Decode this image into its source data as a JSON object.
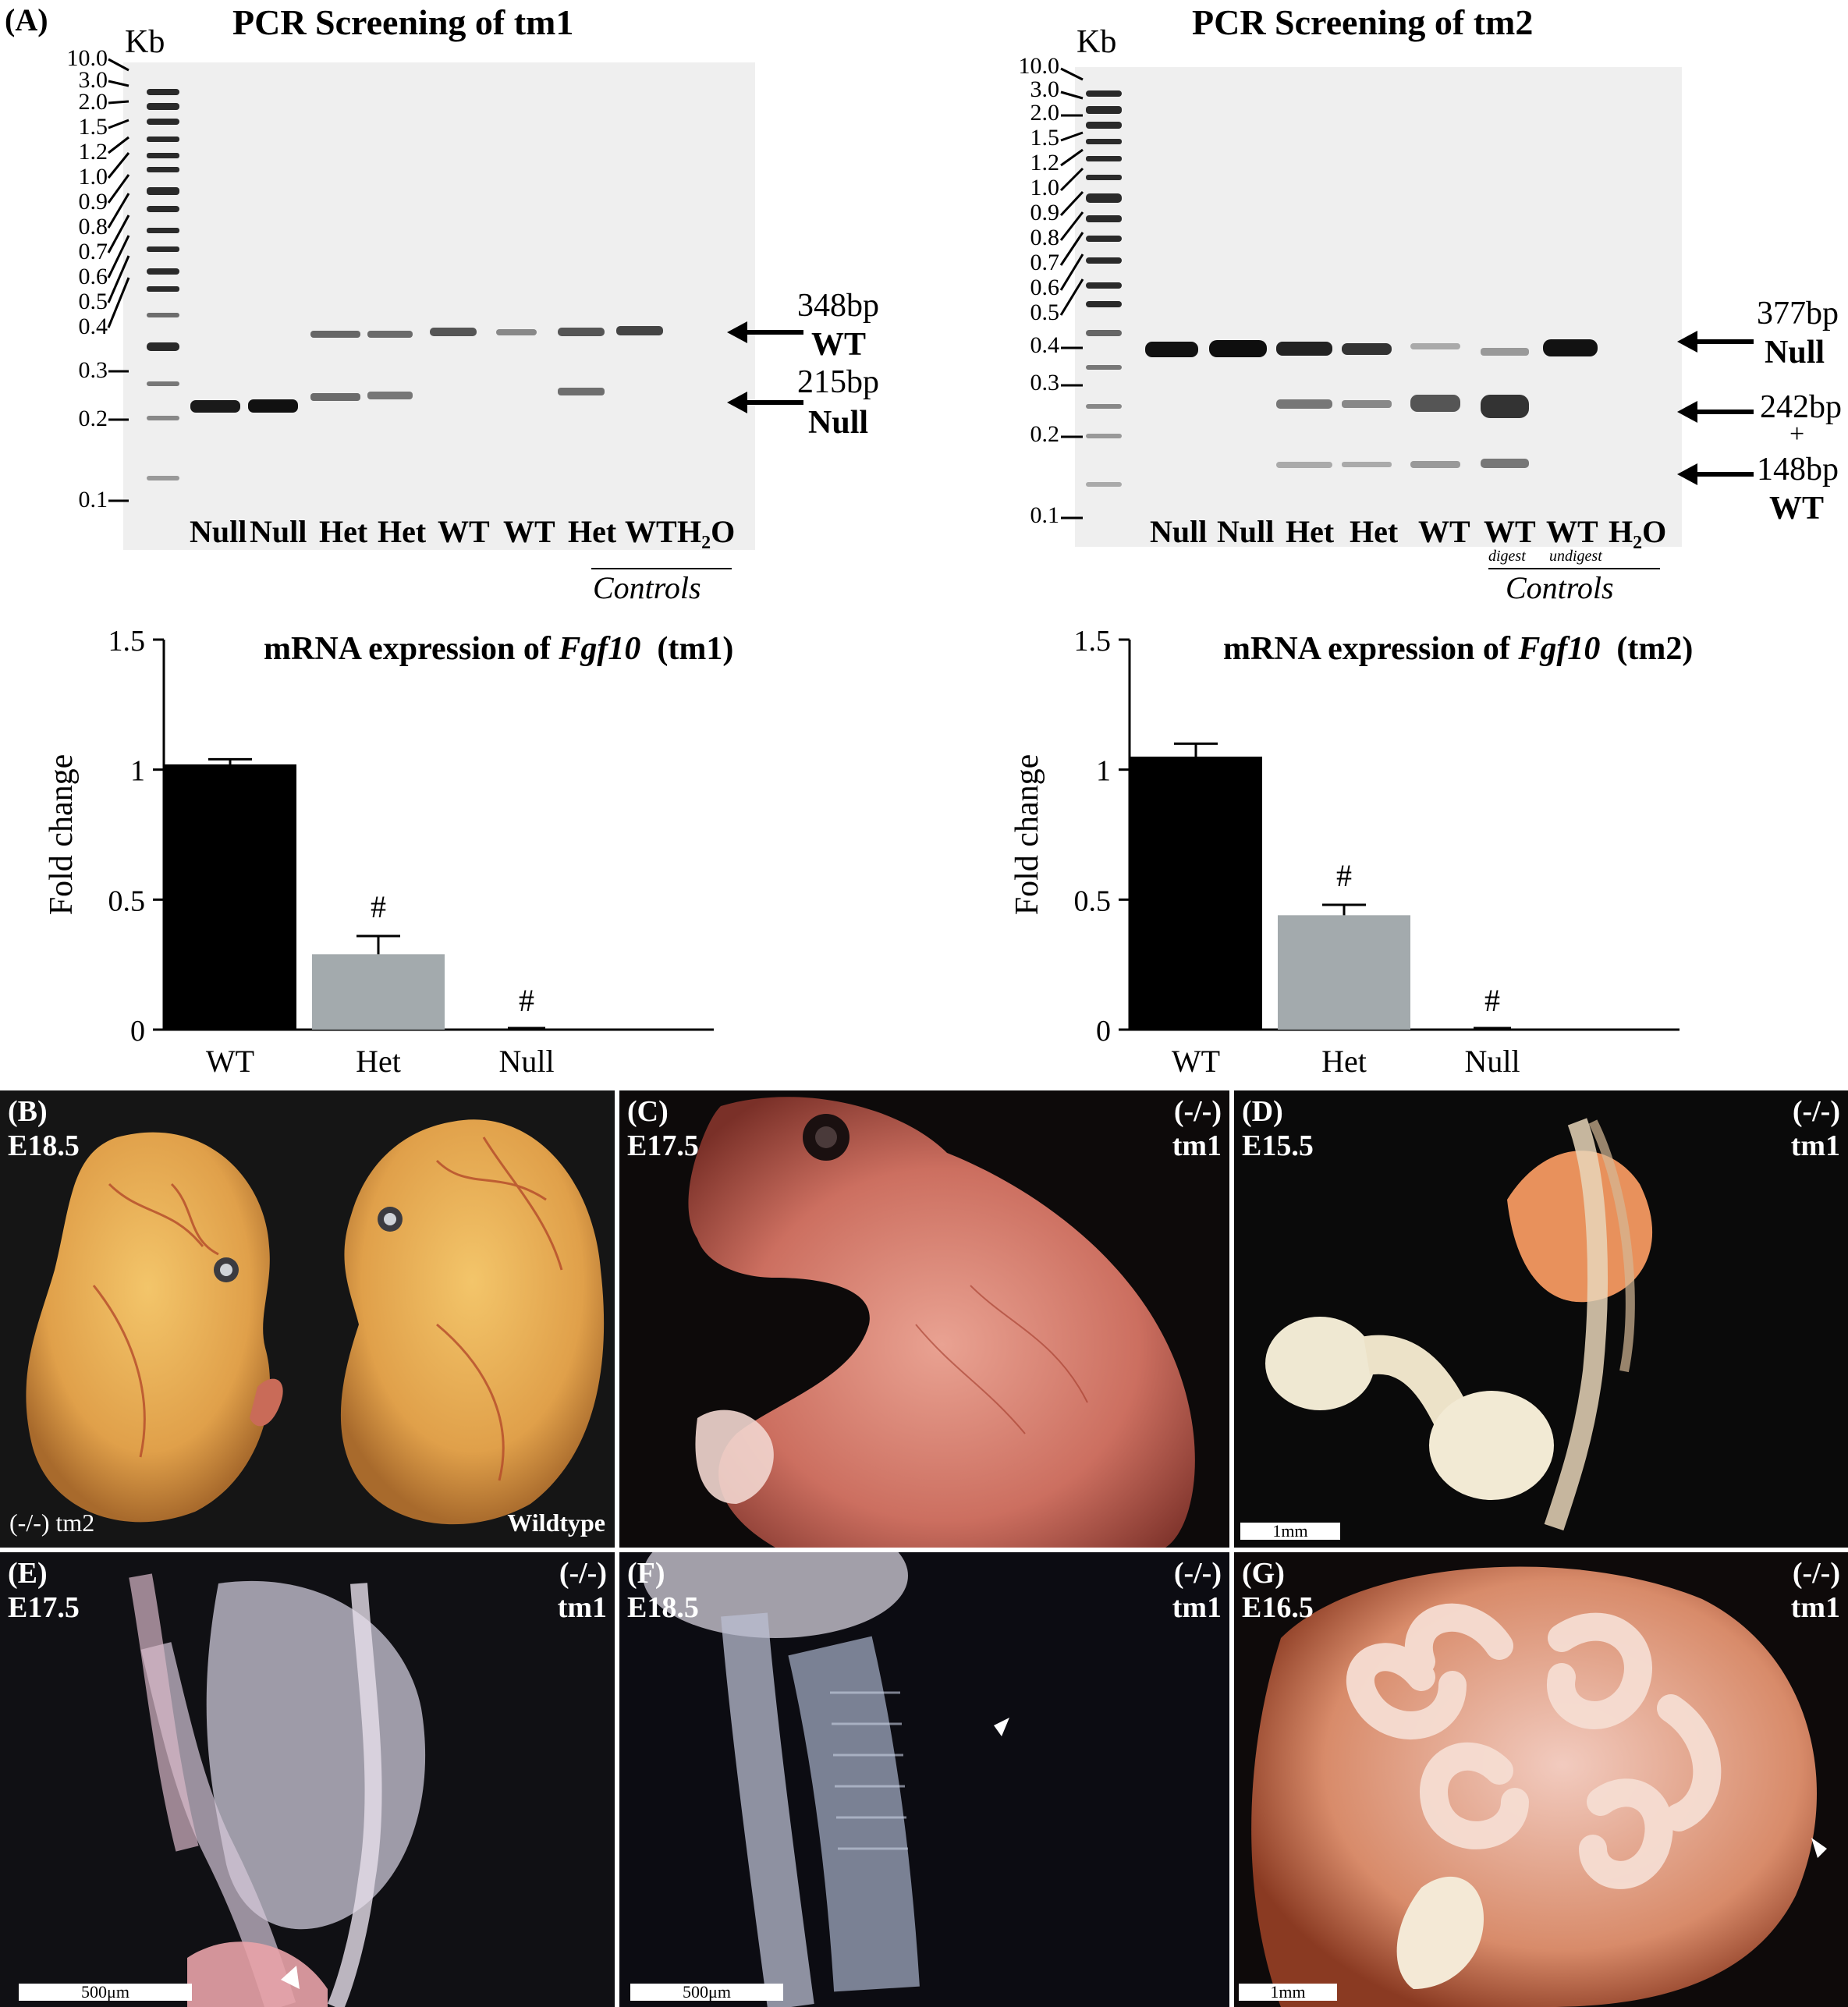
{
  "panel_a": {
    "label": "(A)",
    "kb": "Kb",
    "ladder": [
      "10.0",
      "3.0",
      "2.0",
      "1.5",
      "1.2",
      "1.0",
      "0.9",
      "0.8",
      "0.7",
      "0.6",
      "0.5",
      "0.4",
      "0.3",
      "0.2",
      "0.1"
    ],
    "tm1": {
      "title": "PCR Screening of tm1",
      "lanes": [
        "Null",
        "Null",
        "Het",
        "Het",
        "WT",
        "WT",
        "Het",
        "WT",
        "H₂O"
      ],
      "controls": "Controls",
      "ann_wt_bp": "348bp",
      "ann_wt": "WT",
      "ann_null_bp": "215bp",
      "ann_null": "Null"
    },
    "tm2": {
      "title": "PCR Screening of tm2",
      "lanes": [
        "Null",
        "Null",
        "Het",
        "Het",
        "WT",
        "WT",
        "WT",
        "H₂O"
      ],
      "sub_digest": "digest",
      "sub_undigest": "undigest",
      "controls": "Controls",
      "ann_null_bp": "377bp",
      "ann_null": "Null",
      "ann_242": "242bp",
      "ann_plus": "+",
      "ann_148": "148bp",
      "ann_wt": "WT"
    }
  },
  "chart_data": [
    {
      "type": "bar",
      "title_prefix": "mRNA expression of ",
      "title_gene": "Fgf10",
      "title_suffix": "(tm1)",
      "ylabel": "Fold change",
      "categories": [
        "WT",
        "Het",
        "Null"
      ],
      "values": [
        1.02,
        0.29,
        0.0
      ],
      "errors": [
        0.02,
        0.07,
        0.0
      ],
      "significance": [
        "",
        "#",
        "#"
      ],
      "ylim": [
        0,
        1.5
      ],
      "yticks": [
        "0",
        "0.5",
        "1",
        "1.5"
      ],
      "colors": [
        "#000000",
        "#a3aaad",
        "#a3aaad"
      ]
    },
    {
      "type": "bar",
      "title_prefix": "mRNA expression of ",
      "title_gene": "Fgf10",
      "title_suffix": "(tm2)",
      "ylabel": "Fold change",
      "categories": [
        "WT",
        "Het",
        "Null"
      ],
      "values": [
        1.05,
        0.44,
        0.0
      ],
      "errors": [
        0.05,
        0.04,
        0.0
      ],
      "significance": [
        "",
        "#",
        "#"
      ],
      "ylim": [
        0,
        1.5
      ],
      "yticks": [
        "0",
        "0.5",
        "1",
        "1.5"
      ],
      "colors": [
        "#000000",
        "#a3aaad",
        "#a3aaad"
      ]
    }
  ],
  "photos": {
    "b": {
      "label": "(B)",
      "stage": "E18.5",
      "left_caption": "(-/-) tm2",
      "right_caption": "Wildtype"
    },
    "c": {
      "label": "(C)",
      "stage": "E17.5",
      "genotype": "(-/-)",
      "line": "tm1"
    },
    "d": {
      "label": "(D)",
      "stage": "E15.5",
      "genotype": "(-/-)",
      "line": "tm1",
      "scale": "1mm"
    },
    "e": {
      "label": "(E)",
      "stage": "E17.5",
      "genotype": "(-/-)",
      "line": "tm1",
      "scale": "500μm"
    },
    "f": {
      "label": "(F)",
      "stage": "E18.5",
      "genotype": "(-/-)",
      "line": "tm1",
      "scale": "500μm"
    },
    "g": {
      "label": "(G)",
      "stage": "E16.5",
      "genotype": "(-/-)",
      "line": "tm1",
      "scale": "1mm"
    }
  }
}
